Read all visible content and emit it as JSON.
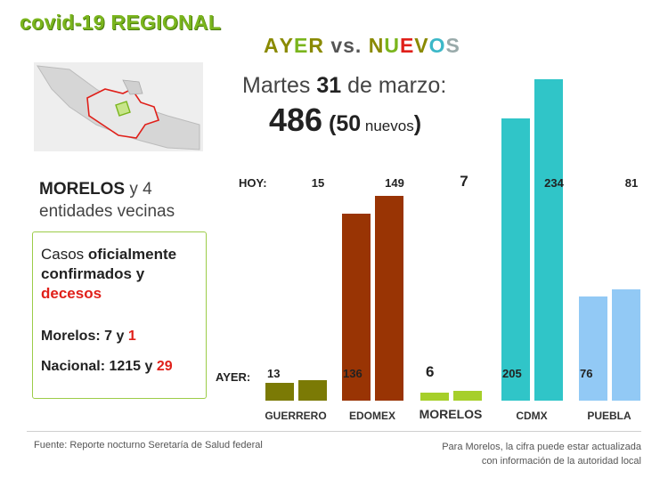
{
  "header": {
    "title": "covid-19 REGIONAL",
    "subtitle_letters": [
      {
        "ch": "A",
        "color": "#8a8a00"
      },
      {
        "ch": "Y",
        "color": "#8a8a00"
      },
      {
        "ch": "E",
        "color": "#7ab51d"
      },
      {
        "ch": "R",
        "color": "#8a8a00"
      },
      {
        "ch": " ",
        "color": "#000"
      },
      {
        "ch": "v",
        "color": "#555"
      },
      {
        "ch": "s",
        "color": "#555"
      },
      {
        "ch": ".",
        "color": "#555"
      },
      {
        "ch": " ",
        "color": "#000"
      },
      {
        "ch": "N",
        "color": "#8a8a00"
      },
      {
        "ch": "U",
        "color": "#7ab51d"
      },
      {
        "ch": "E",
        "color": "#e0201a"
      },
      {
        "ch": "V",
        "color": "#8a8a00"
      },
      {
        "ch": "O",
        "color": "#3cb8c8"
      },
      {
        "ch": "S",
        "color": "#9aa"
      }
    ],
    "date_prefix": "Martes ",
    "date_day": "31",
    "date_suffix": " de marzo:",
    "total": "486",
    "paren_open": " (",
    "nuevos_num": "50",
    "nuevos_label": " nuevos",
    "paren_close": ")"
  },
  "region": {
    "state": "MORELOS",
    "text1": " y 4",
    "text2": "entidades vecinas"
  },
  "box": {
    "casos_prefix": "Casos ",
    "casos_bold": "oficialmente confirmados y",
    "decesos": "decesos",
    "morelos_label": "Morelos: 7 y ",
    "morelos_deaths": "1",
    "nacional_label": "Nacional: 1215 y ",
    "nacional_deaths": "29"
  },
  "labels": {
    "hoy": "HOY:",
    "ayer": "AYER:"
  },
  "footer": {
    "source": "Fuente: Reporte nocturno Seretaría de Salud federal",
    "note1": "Para Morelos, la cifra puede estar actualizada",
    "note2": "con información de la autoridad local"
  },
  "chart_data": {
    "type": "bar",
    "categories": [
      "GUERRERO",
      "EDOMEX",
      "MORELOS",
      "CDMX",
      "PUEBLA"
    ],
    "series": [
      {
        "name": "AYER",
        "values": [
          13,
          136,
          6,
          205,
          76
        ]
      },
      {
        "name": "HOY",
        "values": [
          15,
          149,
          7,
          234,
          81
        ]
      }
    ],
    "colors": [
      "#7b7a05",
      "#993404",
      "#a6cf2a",
      "#30c5c8",
      "#92c9f5"
    ],
    "map_highlight_color": "#e0201a"
  }
}
